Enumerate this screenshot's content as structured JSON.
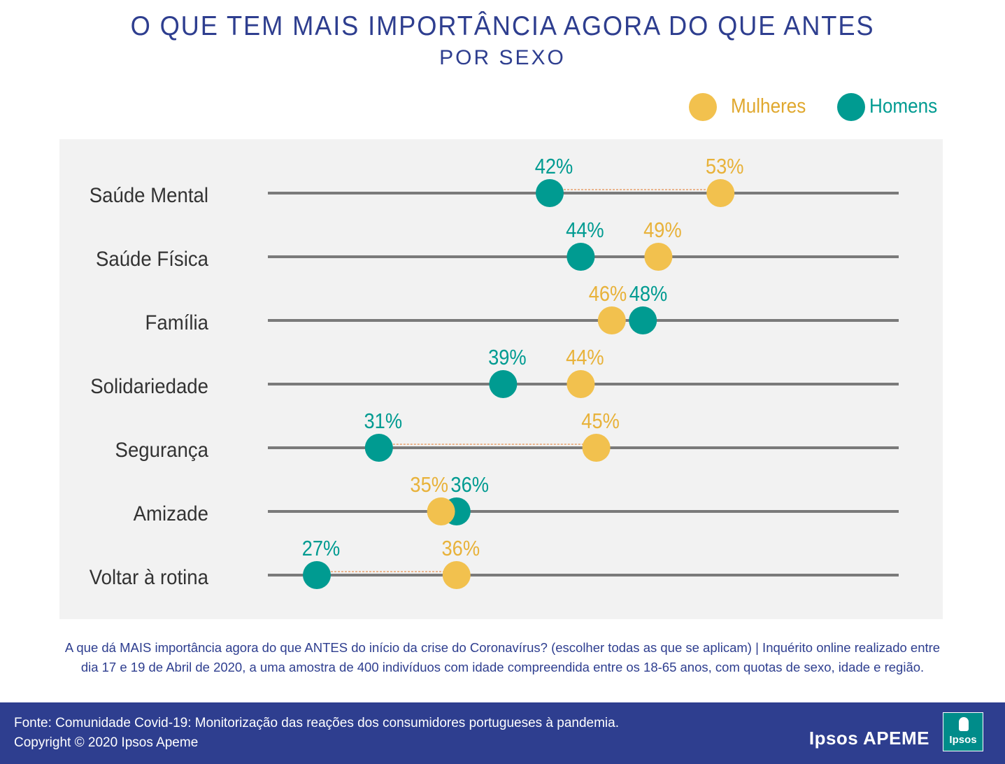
{
  "title": "O QUE TEM MAIS IMPORTÂNCIA AGORA DO QUE ANTES",
  "subtitle": "POR SEXO",
  "legend": {
    "women": "Mulheres",
    "men": "Homens"
  },
  "colors": {
    "women": "#f2c14e",
    "men": "#009b91",
    "track": "#7a7a7a",
    "connector": "#e8a06a",
    "label": "#333333"
  },
  "chart_data": {
    "type": "dot-plot",
    "title": "O QUE TEM MAIS IMPORTÂNCIA AGORA DO QUE ANTES",
    "subtitle": "POR SEXO",
    "xlim": [
      20,
      65
    ],
    "categories": [
      "Saúde Mental",
      "Saúde Física",
      "Família",
      "Solidariedade",
      "Segurança",
      "Amizade",
      "Voltar à rotina"
    ],
    "series": [
      {
        "name": "Mulheres",
        "values": [
          53,
          49,
          46,
          44,
          45,
          35,
          36
        ]
      },
      {
        "name": "Homens",
        "values": [
          42,
          44,
          48,
          39,
          31,
          36,
          27
        ]
      }
    ],
    "value_labels": {
      "Mulheres": [
        "53%",
        "49%",
        "46%",
        "44%",
        "45%",
        "35%",
        "36%"
      ],
      "Homens": [
        "42%",
        "44%",
        "48%",
        "39%",
        "31%",
        "36%",
        "27%"
      ]
    },
    "highlighted_gaps": [
      "Saúde Mental",
      "Segurança",
      "Voltar à rotina"
    ]
  },
  "note": {
    "line1": "A que dá MAIS importância agora do que ANTES do início da crise do Coronavírus? (escolher todas as que se aplicam) |  Inquérito online realizado entre",
    "line2": "dia 17 e 19 de Abril de 2020, a uma amostra de 400 indivíduos com idade compreendida entre os 18-65 anos, com quotas de sexo, idade e região."
  },
  "footer": {
    "source": "Fonte: Comunidade Covid-19: Monitorização das reações dos consumidores portugueses à pandemia.",
    "copyright": "Copyright © 2020 Ipsos Apeme",
    "brand": "Ipsos APEME",
    "logo_text": "Ipsos"
  }
}
